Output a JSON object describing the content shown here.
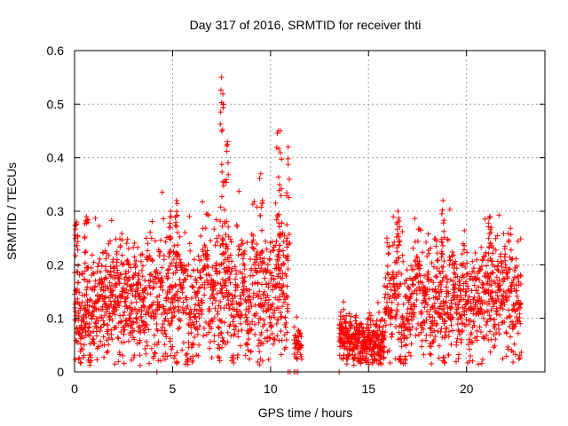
{
  "chart_data": {
    "type": "scatter",
    "title": "Day 317 of 2016, SRMTID for receiver thti",
    "xlabel": "GPS time / hours",
    "ylabel": "SRMTID / TECUs",
    "xlim": [
      0,
      24
    ],
    "ylim": [
      0,
      0.6
    ],
    "xticks": [
      0,
      5,
      10,
      15,
      20
    ],
    "yticks": [
      0,
      0.1,
      0.2,
      0.3,
      0.4,
      0.5,
      0.6
    ],
    "xtick_labels": [
      "0",
      "5",
      "10",
      "15",
      "20"
    ],
    "ytick_labels": [
      "0",
      "0.1",
      "0.2",
      "0.3",
      "0.4",
      "0.5",
      "0.6"
    ],
    "grid": true,
    "marker": "+",
    "color": "#ff0000",
    "series": [
      {
        "name": "SRMTID",
        "segments": [
          {
            "x_start": 0.0,
            "x_end": 3.6,
            "typical": 0.13,
            "spread": 0.07,
            "count": 520
          },
          {
            "x_start": 3.6,
            "x_end": 10.9,
            "typical": 0.15,
            "spread": 0.08,
            "count": 900
          },
          {
            "x_start": 11.2,
            "x_end": 11.6,
            "typical": 0.05,
            "spread": 0.025,
            "count": 40
          },
          {
            "x_start": 13.5,
            "x_end": 15.8,
            "typical": 0.06,
            "spread": 0.03,
            "count": 380
          },
          {
            "x_start": 15.8,
            "x_end": 22.8,
            "typical": 0.14,
            "spread": 0.07,
            "count": 900
          }
        ],
        "peaks": [
          {
            "x": 0.1,
            "y": 0.28
          },
          {
            "x": 0.6,
            "y": 0.29
          },
          {
            "x": 4.9,
            "y": 0.3
          },
          {
            "x": 5.2,
            "y": 0.32
          },
          {
            "x": 7.5,
            "y": 0.55
          },
          {
            "x": 7.6,
            "y": 0.5
          },
          {
            "x": 7.8,
            "y": 0.43
          },
          {
            "x": 9.5,
            "y": 0.37
          },
          {
            "x": 10.4,
            "y": 0.45
          },
          {
            "x": 10.5,
            "y": 0.45
          },
          {
            "x": 10.9,
            "y": 0.42
          },
          {
            "x": 16.5,
            "y": 0.3
          },
          {
            "x": 18.8,
            "y": 0.32
          },
          {
            "x": 21.2,
            "y": 0.29
          }
        ],
        "zero_points": [
          4.2,
          10.9,
          11.0,
          11.2,
          11.3,
          11.4,
          13.5
        ]
      }
    ]
  }
}
